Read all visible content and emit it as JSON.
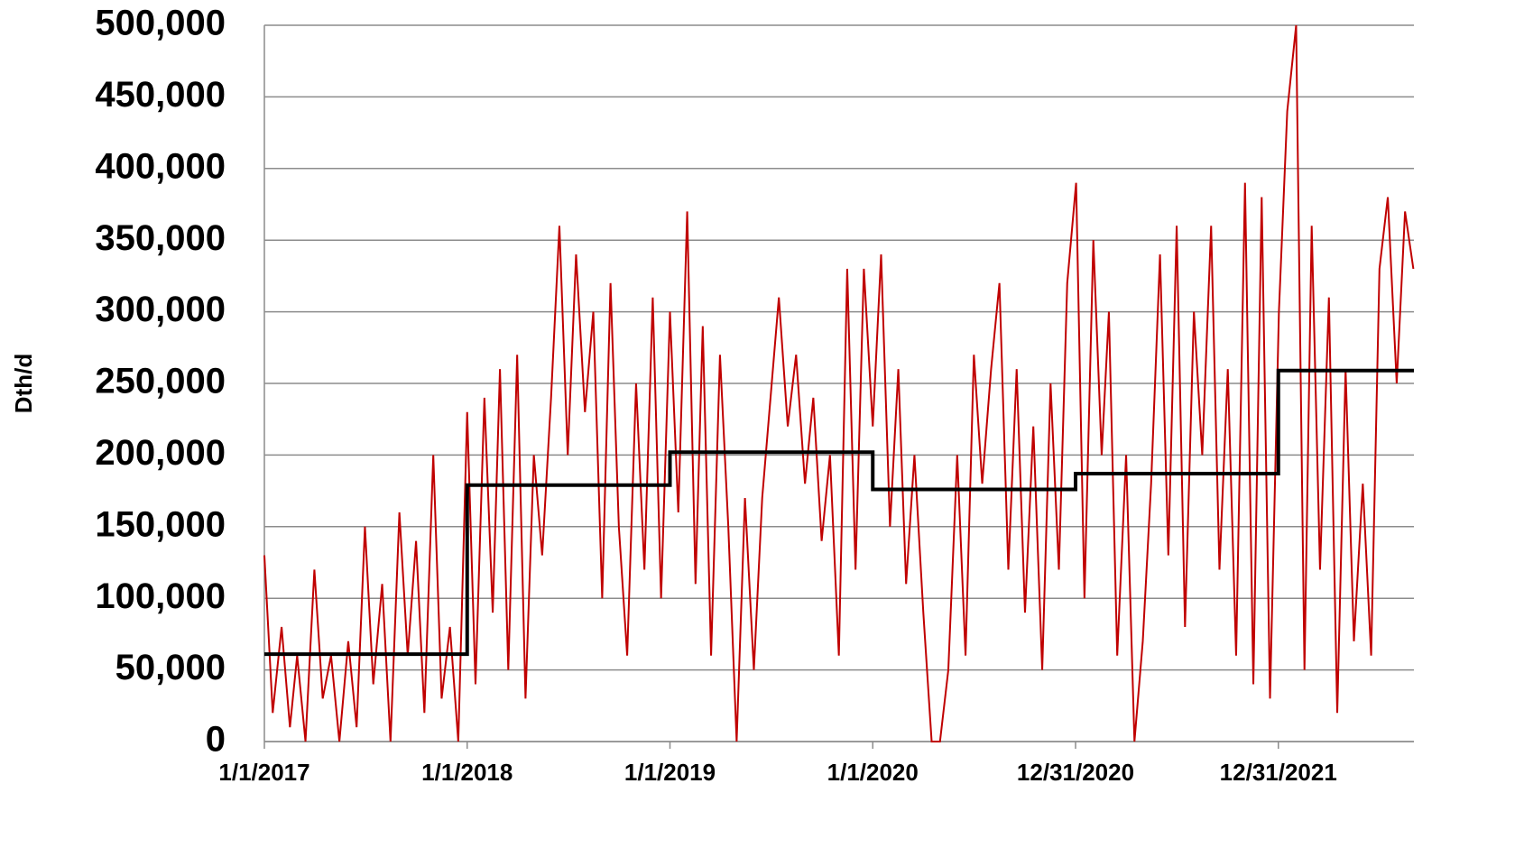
{
  "chart_data": {
    "type": "line",
    "y_label": "Dth/d",
    "xlim": [
      "1/1/2017",
      "9/1/2022"
    ],
    "xticks": [
      "1/1/2017",
      "1/1/2018",
      "1/1/2019",
      "1/1/2020",
      "12/31/2020",
      "12/31/2021"
    ],
    "ylim": [
      0,
      500000
    ],
    "yticks": [
      0,
      {
        "value": 50000,
        "label": "50,000"
      },
      {
        "value": 100000,
        "label": "100,000"
      },
      {
        "value": 150000,
        "label": "150,000"
      },
      {
        "value": 200000,
        "label": "200,000"
      },
      {
        "value": 250000,
        "label": "250,000"
      },
      {
        "value": 300000,
        "label": "300,000"
      },
      {
        "value": 350000,
        "label": "350,000"
      },
      {
        "value": 400000,
        "label": "400,000"
      },
      {
        "value": 450000,
        "label": "450,000"
      },
      {
        "value": 500000,
        "label": "500,000"
      }
    ],
    "grid": true,
    "series": [
      {
        "color": "#c00000",
        "step": false,
        "x": [
          "1/1/2017",
          "1/16/2017",
          "2/1/2017",
          "2/16/2017",
          "3/1/2017",
          "3/16/2017",
          "4/1/2017",
          "4/16/2017",
          "5/1/2017",
          "5/16/2017",
          "6/1/2017",
          "6/16/2017",
          "7/1/2017",
          "7/16/2017",
          "8/1/2017",
          "8/16/2017",
          "9/1/2017",
          "9/16/2017",
          "10/1/2017",
          "10/16/2017",
          "11/1/2017",
          "11/16/2017",
          "12/1/2017",
          "12/16/2017",
          "1/1/2018",
          "1/16/2018",
          "2/1/2018",
          "2/16/2018",
          "3/1/2018",
          "3/16/2018",
          "4/1/2018",
          "4/16/2018",
          "5/1/2018",
          "5/16/2018",
          "6/1/2018",
          "6/16/2018",
          "7/1/2018",
          "7/16/2018",
          "8/1/2018",
          "8/16/2018",
          "9/1/2018",
          "9/16/2018",
          "10/1/2018",
          "10/16/2018",
          "11/1/2018",
          "11/16/2018",
          "12/1/2018",
          "12/16/2018",
          "1/1/2019",
          "1/16/2019",
          "2/1/2019",
          "2/16/2019",
          "3/1/2019",
          "3/16/2019",
          "4/1/2019",
          "4/16/2019",
          "5/1/2019",
          "5/16/2019",
          "6/1/2019",
          "6/16/2019",
          "7/1/2019",
          "7/16/2019",
          "8/1/2019",
          "8/16/2019",
          "9/1/2019",
          "9/16/2019",
          "10/1/2019",
          "10/16/2019",
          "11/1/2019",
          "11/16/2019",
          "12/1/2019",
          "12/16/2019",
          "1/1/2020",
          "1/16/2020",
          "2/1/2020",
          "2/16/2020",
          "3/1/2020",
          "3/16/2020",
          "4/1/2020",
          "4/16/2020",
          "5/1/2020",
          "5/16/2020",
          "6/1/2020",
          "6/16/2020",
          "7/1/2020",
          "7/16/2020",
          "8/1/2020",
          "8/16/2020",
          "9/1/2020",
          "9/16/2020",
          "10/1/2020",
          "10/16/2020",
          "11/1/2020",
          "11/16/2020",
          "12/1/2020",
          "12/16/2020",
          "1/1/2021",
          "1/16/2021",
          "2/1/2021",
          "2/16/2021",
          "3/1/2021",
          "3/16/2021",
          "4/1/2021",
          "4/16/2021",
          "5/1/2021",
          "5/16/2021",
          "6/1/2021",
          "6/16/2021",
          "7/1/2021",
          "7/16/2021",
          "8/1/2021",
          "8/16/2021",
          "9/1/2021",
          "9/16/2021",
          "10/1/2021",
          "10/16/2021",
          "11/1/2021",
          "11/16/2021",
          "12/1/2021",
          "12/16/2021",
          "1/1/2022",
          "1/16/2022",
          "2/1/2022",
          "2/16/2022",
          "3/1/2022",
          "3/16/2022",
          "4/1/2022",
          "4/16/2022",
          "5/1/2022",
          "5/16/2022",
          "6/1/2022",
          "6/16/2022",
          "7/1/2022",
          "7/16/2022",
          "8/1/2022",
          "8/16/2022",
          "8/31/2022"
        ],
        "values": [
          130000,
          20000,
          80000,
          10000,
          60000,
          0,
          120000,
          30000,
          60000,
          0,
          70000,
          10000,
          150000,
          40000,
          110000,
          0,
          160000,
          60000,
          140000,
          20000,
          200000,
          30000,
          80000,
          0,
          230000,
          40000,
          240000,
          90000,
          260000,
          50000,
          270000,
          30000,
          200000,
          130000,
          240000,
          360000,
          200000,
          340000,
          230000,
          300000,
          100000,
          320000,
          150000,
          60000,
          250000,
          120000,
          310000,
          100000,
          300000,
          160000,
          370000,
          110000,
          290000,
          60000,
          270000,
          150000,
          0,
          170000,
          50000,
          170000,
          240000,
          310000,
          220000,
          270000,
          180000,
          240000,
          140000,
          200000,
          60000,
          330000,
          120000,
          330000,
          220000,
          340000,
          150000,
          260000,
          110000,
          200000,
          90000,
          0,
          0,
          50000,
          200000,
          60000,
          270000,
          180000,
          260000,
          320000,
          120000,
          260000,
          90000,
          220000,
          50000,
          250000,
          120000,
          320000,
          390000,
          100000,
          350000,
          200000,
          300000,
          60000,
          200000,
          0,
          70000,
          180000,
          340000,
          130000,
          360000,
          80000,
          300000,
          200000,
          360000,
          120000,
          260000,
          60000,
          390000,
          40000,
          380000,
          30000,
          300000,
          440000,
          500000,
          50000,
          360000,
          120000,
          310000,
          20000,
          260000,
          70000,
          180000,
          60000,
          330000,
          380000,
          250000,
          370000,
          330000
        ]
      },
      {
        "color": "#000000",
        "step": true,
        "x": [
          "1/1/2017",
          "1/1/2018",
          "1/1/2019",
          "1/1/2020",
          "12/31/2020",
          "12/31/2021"
        ],
        "values": [
          61000,
          179000,
          202000,
          176000,
          187000,
          259000
        ]
      }
    ]
  }
}
